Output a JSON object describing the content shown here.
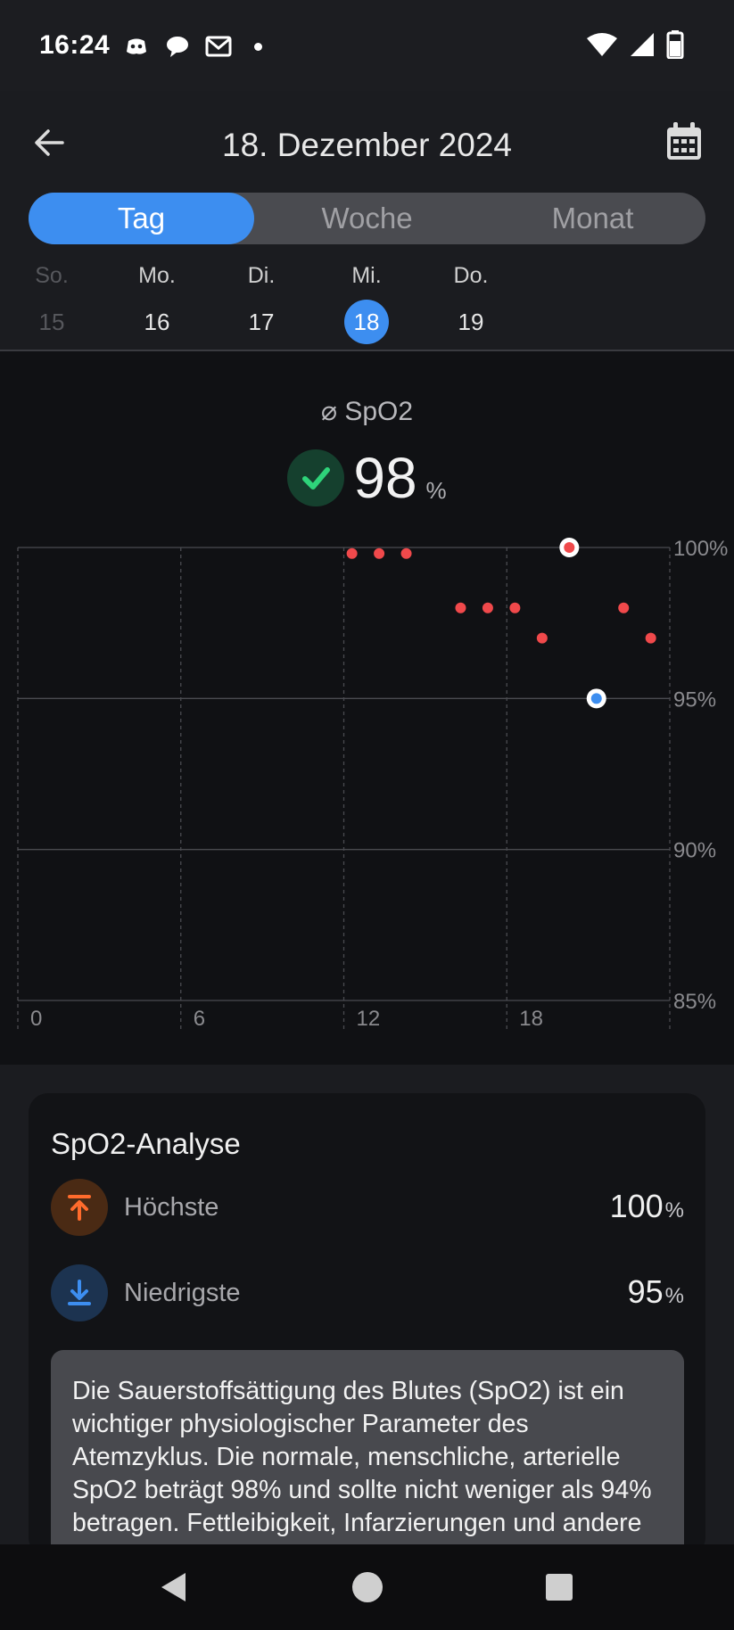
{
  "status_bar": {
    "time": "16:24",
    "icons": [
      "discord-icon",
      "chat-icon",
      "mail-icon",
      "dot-icon",
      "wifi-icon",
      "signal-icon",
      "battery-icon"
    ]
  },
  "header": {
    "title": "18. Dezember 2024",
    "tabs": [
      {
        "label": "Tag",
        "active": true
      },
      {
        "label": "Woche",
        "active": false
      },
      {
        "label": "Monat",
        "active": false
      }
    ],
    "days": [
      {
        "name": "So.",
        "date": "15",
        "state": "dim"
      },
      {
        "name": "Mo.",
        "date": "16",
        "state": "normal"
      },
      {
        "name": "Di.",
        "date": "17",
        "state": "normal"
      },
      {
        "name": "Mi.",
        "date": "18",
        "state": "selected"
      },
      {
        "name": "Do.",
        "date": "19",
        "state": "normal"
      }
    ]
  },
  "summary": {
    "label": "⌀ SpO2",
    "value": "98",
    "unit": "%"
  },
  "chart_data": {
    "type": "scatter",
    "x_ticks": [
      "0",
      "6",
      "12",
      "18"
    ],
    "y_ticks": [
      "100%",
      "95%",
      "90%",
      "85%"
    ],
    "xlim": [
      0,
      24
    ],
    "ylim": [
      85,
      100
    ],
    "grid": true,
    "points": [
      {
        "x": 12.3,
        "y": 99.8
      },
      {
        "x": 13.3,
        "y": 99.8
      },
      {
        "x": 14.3,
        "y": 99.8
      },
      {
        "x": 16.3,
        "y": 98
      },
      {
        "x": 17.3,
        "y": 98
      },
      {
        "x": 18.3,
        "y": 98
      },
      {
        "x": 19.3,
        "y": 97
      },
      {
        "x": 22.3,
        "y": 98
      },
      {
        "x": 23.3,
        "y": 97
      }
    ],
    "max_point": {
      "x": 20.3,
      "y": 100
    },
    "min_point": {
      "x": 21.3,
      "y": 95
    },
    "colors": {
      "point": "#f0494b",
      "min": "#3d8ef0",
      "grid": "#4a4b50",
      "label": "#8a8a8e"
    }
  },
  "analysis": {
    "title": "SpO2-Analyse",
    "highest_label": "Höchste",
    "highest_value": "100",
    "lowest_label": "Niedrigste",
    "lowest_value": "95",
    "unit": "%",
    "info_text": "Die Sauerstoffsättigung des Blutes (SpO2) ist ein wichtiger physiologischer Parameter des Atemzyklus. Die normale, menschliche, arterielle SpO2 beträgt 98% und sollte nicht weniger als 94% betragen. Fettleibigkeit, Infarzierungen und andere Faktoren"
  }
}
